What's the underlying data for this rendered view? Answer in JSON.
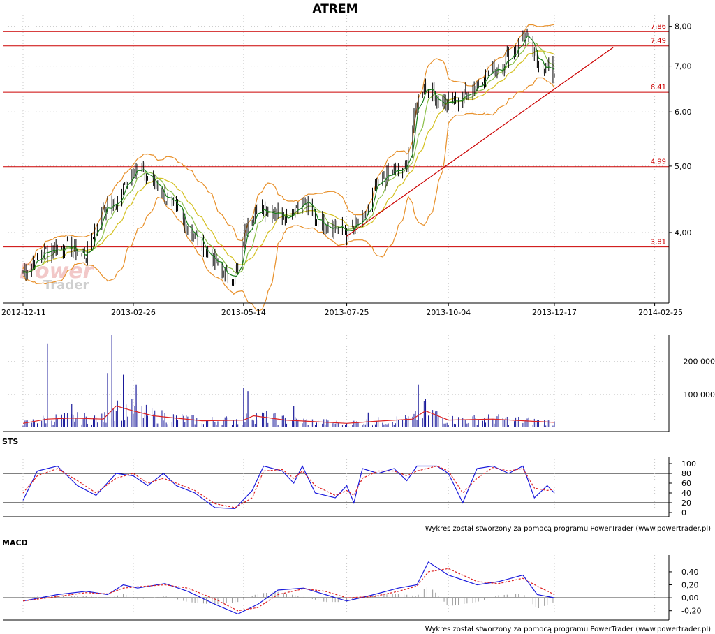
{
  "chart_data": [
    {
      "type": "candlestick",
      "title": "ATREM",
      "y_scale": "log",
      "ylim": [
        3.2,
        8.3
      ],
      "y_ticks": [
        {
          "value": 4.0,
          "label": "4,00"
        },
        {
          "value": 5.0,
          "label": "5,00"
        },
        {
          "value": 6.0,
          "label": "6,00"
        },
        {
          "value": 7.0,
          "label": "7,00"
        },
        {
          "value": 8.0,
          "label": "8,00"
        }
      ],
      "x_ticks": [
        "2012-12-11",
        "2013-02-26",
        "2013-05-14",
        "2013-07-25",
        "2013-10-04",
        "2013-12-17",
        "2014-02-25"
      ],
      "grid": true,
      "levels": [
        {
          "value": 7.86,
          "label": "7,86"
        },
        {
          "value": 7.49,
          "label": "7,49"
        },
        {
          "value": 6.41,
          "label": "6,41"
        },
        {
          "value": 4.99,
          "label": "4,99"
        },
        {
          "value": 3.81,
          "label": "3,81"
        }
      ],
      "trendline": {
        "from": {
          "x": "2013-07-25",
          "y": 3.95
        },
        "to": {
          "x": "2014-01-27",
          "y": 7.45
        }
      },
      "price_path": [
        {
          "x": "2012-12-11",
          "y": 3.5
        },
        {
          "x": "2012-12-28",
          "y": 3.78
        },
        {
          "x": "2013-01-10",
          "y": 3.82
        },
        {
          "x": "2013-01-24",
          "y": 3.7
        },
        {
          "x": "2013-02-05",
          "y": 4.35
        },
        {
          "x": "2013-02-14",
          "y": 4.4
        },
        {
          "x": "2013-02-26",
          "y": 5.0
        },
        {
          "x": "2013-03-12",
          "y": 4.75
        },
        {
          "x": "2013-03-26",
          "y": 4.35
        },
        {
          "x": "2013-04-08",
          "y": 4.0
        },
        {
          "x": "2013-04-22",
          "y": 3.65
        },
        {
          "x": "2013-05-03",
          "y": 3.45
        },
        {
          "x": "2013-05-10",
          "y": 3.5
        },
        {
          "x": "2013-05-17",
          "y": 4.2
        },
        {
          "x": "2013-05-28",
          "y": 4.35
        },
        {
          "x": "2013-06-12",
          "y": 4.25
        },
        {
          "x": "2013-06-25",
          "y": 4.45
        },
        {
          "x": "2013-07-02",
          "y": 4.2
        },
        {
          "x": "2013-07-15",
          "y": 4.1
        },
        {
          "x": "2013-07-25",
          "y": 4.0
        },
        {
          "x": "2013-08-06",
          "y": 4.15
        },
        {
          "x": "2013-08-13",
          "y": 4.6
        },
        {
          "x": "2013-08-22",
          "y": 4.85
        },
        {
          "x": "2013-09-04",
          "y": 4.95
        },
        {
          "x": "2013-09-12",
          "y": 6.2
        },
        {
          "x": "2013-09-17",
          "y": 6.6
        },
        {
          "x": "2013-09-26",
          "y": 6.25
        },
        {
          "x": "2013-10-04",
          "y": 6.15
        },
        {
          "x": "2013-10-18",
          "y": 6.4
        },
        {
          "x": "2013-10-30",
          "y": 6.8
        },
        {
          "x": "2013-11-08",
          "y": 7.0
        },
        {
          "x": "2013-11-20",
          "y": 7.4
        },
        {
          "x": "2013-11-25",
          "y": 7.85
        },
        {
          "x": "2013-12-03",
          "y": 7.2
        },
        {
          "x": "2013-12-10",
          "y": 7.0
        },
        {
          "x": "2013-12-17",
          "y": 6.8
        }
      ]
    },
    {
      "type": "bar",
      "name": "volume",
      "ylim": [
        0,
        280000
      ],
      "y_ticks": [
        {
          "value": 100000,
          "label": "100 000"
        },
        {
          "value": 200000,
          "label": "200 000"
        }
      ],
      "spikes": [
        {
          "x": "2012-12-28",
          "y": 255000
        },
        {
          "x": "2013-01-14",
          "y": 70000
        },
        {
          "x": "2013-02-08",
          "y": 165000
        },
        {
          "x": "2013-02-11",
          "y": 285000
        },
        {
          "x": "2013-02-19",
          "y": 160000
        },
        {
          "x": "2013-02-28",
          "y": 130000
        },
        {
          "x": "2013-05-14",
          "y": 120000
        },
        {
          "x": "2013-05-17",
          "y": 110000
        },
        {
          "x": "2013-06-18",
          "y": 65000
        },
        {
          "x": "2013-08-09",
          "y": 45000
        },
        {
          "x": "2013-09-13",
          "y": 130000
        },
        {
          "x": "2013-09-18",
          "y": 85000
        }
      ],
      "average_path": [
        {
          "x": "2012-12-11",
          "y": 12000
        },
        {
          "x": "2012-12-28",
          "y": 25000
        },
        {
          "x": "2013-01-14",
          "y": 28000
        },
        {
          "x": "2013-02-05",
          "y": 25000
        },
        {
          "x": "2013-02-14",
          "y": 65000
        },
        {
          "x": "2013-02-26",
          "y": 50000
        },
        {
          "x": "2013-03-12",
          "y": 35000
        },
        {
          "x": "2013-04-15",
          "y": 20000
        },
        {
          "x": "2013-05-14",
          "y": 22000
        },
        {
          "x": "2013-05-21",
          "y": 35000
        },
        {
          "x": "2013-06-12",
          "y": 22000
        },
        {
          "x": "2013-07-25",
          "y": 12000
        },
        {
          "x": "2013-08-13",
          "y": 18000
        },
        {
          "x": "2013-09-09",
          "y": 25000
        },
        {
          "x": "2013-09-18",
          "y": 50000
        },
        {
          "x": "2013-10-04",
          "y": 22000
        },
        {
          "x": "2013-11-04",
          "y": 25000
        },
        {
          "x": "2013-12-03",
          "y": 18000
        },
        {
          "x": "2013-12-17",
          "y": 15000
        }
      ]
    },
    {
      "type": "line",
      "title": "STS",
      "ylim": [
        0,
        100
      ],
      "y_ticks": [
        {
          "value": 0,
          "label": "0"
        },
        {
          "value": 20,
          "label": "20"
        },
        {
          "value": 40,
          "label": "40"
        },
        {
          "value": 60,
          "label": "60"
        },
        {
          "value": 80,
          "label": "80"
        },
        {
          "value": 100,
          "label": "100"
        }
      ],
      "reference_lines": [
        20,
        80
      ],
      "series": [
        {
          "color": "#1a1adc",
          "values": [
            {
              "x": "2012-12-11",
              "y": 25
            },
            {
              "x": "2012-12-21",
              "y": 85
            },
            {
              "x": "2013-01-04",
              "y": 95
            },
            {
              "x": "2013-01-18",
              "y": 55
            },
            {
              "x": "2013-01-31",
              "y": 35
            },
            {
              "x": "2013-02-14",
              "y": 80
            },
            {
              "x": "2013-02-26",
              "y": 75
            },
            {
              "x": "2013-03-08",
              "y": 55
            },
            {
              "x": "2013-03-19",
              "y": 80
            },
            {
              "x": "2013-03-28",
              "y": 55
            },
            {
              "x": "2013-04-10",
              "y": 40
            },
            {
              "x": "2013-04-24",
              "y": 10
            },
            {
              "x": "2013-05-08",
              "y": 8
            },
            {
              "x": "2013-05-20",
              "y": 45
            },
            {
              "x": "2013-05-28",
              "y": 95
            },
            {
              "x": "2013-06-10",
              "y": 85
            },
            {
              "x": "2013-06-18",
              "y": 60
            },
            {
              "x": "2013-06-24",
              "y": 95
            },
            {
              "x": "2013-07-03",
              "y": 40
            },
            {
              "x": "2013-07-17",
              "y": 30
            },
            {
              "x": "2013-07-25",
              "y": 55
            },
            {
              "x": "2013-07-30",
              "y": 20
            },
            {
              "x": "2013-08-05",
              "y": 90
            },
            {
              "x": "2013-08-16",
              "y": 80
            },
            {
              "x": "2013-08-27",
              "y": 90
            },
            {
              "x": "2013-09-05",
              "y": 65
            },
            {
              "x": "2013-09-12",
              "y": 95
            },
            {
              "x": "2013-09-26",
              "y": 95
            },
            {
              "x": "2013-10-04",
              "y": 80
            },
            {
              "x": "2013-10-14",
              "y": 20
            },
            {
              "x": "2013-10-24",
              "y": 90
            },
            {
              "x": "2013-11-04",
              "y": 95
            },
            {
              "x": "2013-11-15",
              "y": 80
            },
            {
              "x": "2013-11-25",
              "y": 95
            },
            {
              "x": "2013-12-03",
              "y": 30
            },
            {
              "x": "2013-12-12",
              "y": 55
            },
            {
              "x": "2013-12-17",
              "y": 40
            }
          ]
        },
        {
          "color": "#dd2222",
          "values": [
            {
              "x": "2012-12-11",
              "y": 40
            },
            {
              "x": "2012-12-21",
              "y": 75
            },
            {
              "x": "2013-01-04",
              "y": 90
            },
            {
              "x": "2013-01-18",
              "y": 65
            },
            {
              "x": "2013-01-31",
              "y": 40
            },
            {
              "x": "2013-02-14",
              "y": 70
            },
            {
              "x": "2013-02-26",
              "y": 80
            },
            {
              "x": "2013-03-08",
              "y": 60
            },
            {
              "x": "2013-03-19",
              "y": 70
            },
            {
              "x": "2013-03-28",
              "y": 60
            },
            {
              "x": "2013-04-10",
              "y": 45
            },
            {
              "x": "2013-04-24",
              "y": 18
            },
            {
              "x": "2013-05-08",
              "y": 10
            },
            {
              "x": "2013-05-20",
              "y": 30
            },
            {
              "x": "2013-05-28",
              "y": 85
            },
            {
              "x": "2013-06-10",
              "y": 88
            },
            {
              "x": "2013-06-18",
              "y": 70
            },
            {
              "x": "2013-06-24",
              "y": 85
            },
            {
              "x": "2013-07-03",
              "y": 55
            },
            {
              "x": "2013-07-17",
              "y": 35
            },
            {
              "x": "2013-07-25",
              "y": 45
            },
            {
              "x": "2013-07-30",
              "y": 35
            },
            {
              "x": "2013-08-05",
              "y": 70
            },
            {
              "x": "2013-08-16",
              "y": 85
            },
            {
              "x": "2013-08-27",
              "y": 85
            },
            {
              "x": "2013-09-05",
              "y": 75
            },
            {
              "x": "2013-09-12",
              "y": 85
            },
            {
              "x": "2013-09-26",
              "y": 95
            },
            {
              "x": "2013-10-04",
              "y": 85
            },
            {
              "x": "2013-10-14",
              "y": 40
            },
            {
              "x": "2013-10-24",
              "y": 70
            },
            {
              "x": "2013-11-04",
              "y": 92
            },
            {
              "x": "2013-11-15",
              "y": 85
            },
            {
              "x": "2013-11-25",
              "y": 90
            },
            {
              "x": "2013-12-03",
              "y": 50
            },
            {
              "x": "2013-12-12",
              "y": 45
            },
            {
              "x": "2013-12-17",
              "y": 48
            }
          ]
        }
      ]
    },
    {
      "type": "line",
      "title": "MACD",
      "ylim": [
        -0.3,
        0.55
      ],
      "y_ticks": [
        {
          "value": -0.2,
          "label": "-0,20"
        },
        {
          "value": 0.0,
          "label": "0,00"
        },
        {
          "value": 0.2,
          "label": "0,20"
        },
        {
          "value": 0.4,
          "label": "0,40"
        }
      ],
      "zero_line": true,
      "series": [
        {
          "color": "#1a1adc",
          "values": [
            {
              "x": "2012-12-11",
              "y": -0.05
            },
            {
              "x": "2013-01-04",
              "y": 0.05
            },
            {
              "x": "2013-01-24",
              "y": 0.1
            },
            {
              "x": "2013-02-08",
              "y": 0.05
            },
            {
              "x": "2013-02-19",
              "y": 0.2
            },
            {
              "x": "2013-03-01",
              "y": 0.15
            },
            {
              "x": "2013-03-20",
              "y": 0.22
            },
            {
              "x": "2013-04-05",
              "y": 0.1
            },
            {
              "x": "2013-04-24",
              "y": -0.1
            },
            {
              "x": "2013-05-10",
              "y": -0.25
            },
            {
              "x": "2013-05-24",
              "y": -0.1
            },
            {
              "x": "2013-06-07",
              "y": 0.12
            },
            {
              "x": "2013-06-25",
              "y": 0.15
            },
            {
              "x": "2013-07-10",
              "y": 0.05
            },
            {
              "x": "2013-07-25",
              "y": -0.05
            },
            {
              "x": "2013-08-13",
              "y": 0.05
            },
            {
              "x": "2013-08-30",
              "y": 0.15
            },
            {
              "x": "2013-09-12",
              "y": 0.2
            },
            {
              "x": "2013-09-20",
              "y": 0.55
            },
            {
              "x": "2013-10-04",
              "y": 0.35
            },
            {
              "x": "2013-10-24",
              "y": 0.2
            },
            {
              "x": "2013-11-08",
              "y": 0.25
            },
            {
              "x": "2013-11-25",
              "y": 0.35
            },
            {
              "x": "2013-12-05",
              "y": 0.05
            },
            {
              "x": "2013-12-17",
              "y": 0.0
            }
          ]
        },
        {
          "color": "#dd2222",
          "values": [
            {
              "x": "2012-12-11",
              "y": -0.05
            },
            {
              "x": "2013-01-04",
              "y": 0.02
            },
            {
              "x": "2013-01-24",
              "y": 0.08
            },
            {
              "x": "2013-02-08",
              "y": 0.06
            },
            {
              "x": "2013-02-19",
              "y": 0.15
            },
            {
              "x": "2013-03-01",
              "y": 0.17
            },
            {
              "x": "2013-03-20",
              "y": 0.2
            },
            {
              "x": "2013-04-05",
              "y": 0.15
            },
            {
              "x": "2013-04-24",
              "y": -0.02
            },
            {
              "x": "2013-05-10",
              "y": -0.2
            },
            {
              "x": "2013-05-24",
              "y": -0.15
            },
            {
              "x": "2013-06-07",
              "y": 0.05
            },
            {
              "x": "2013-06-25",
              "y": 0.14
            },
            {
              "x": "2013-07-10",
              "y": 0.1
            },
            {
              "x": "2013-07-25",
              "y": 0.0
            },
            {
              "x": "2013-08-13",
              "y": 0.02
            },
            {
              "x": "2013-08-30",
              "y": 0.1
            },
            {
              "x": "2013-09-12",
              "y": 0.18
            },
            {
              "x": "2013-09-20",
              "y": 0.4
            },
            {
              "x": "2013-10-04",
              "y": 0.45
            },
            {
              "x": "2013-10-24",
              "y": 0.25
            },
            {
              "x": "2013-11-08",
              "y": 0.22
            },
            {
              "x": "2013-11-25",
              "y": 0.3
            },
            {
              "x": "2013-12-05",
              "y": 0.18
            },
            {
              "x": "2013-12-17",
              "y": 0.05
            }
          ]
        }
      ]
    }
  ],
  "panels": {
    "sts_title": "STS",
    "macd_title": "MACD"
  },
  "watermark": {
    "word1": "Power",
    "word2": "Trader"
  },
  "credits": {
    "sts": "Wykres został stworzony za pomocą programu PowerTrader (www.powertrader.pl)",
    "macd": "Wykres został stworzony za pomocą programu PowerTrader (www.powertrader.pl)"
  },
  "colors": {
    "candles": "#000000",
    "sma_short": "#1a7f1a",
    "sma_long": "#d4c020",
    "bollinger": "#e8902a",
    "levels": "#cc0000",
    "volume_bars": "#1a1a9a",
    "volume_avg": "#dd2222",
    "macd_histogram": "#9a9a9a"
  }
}
